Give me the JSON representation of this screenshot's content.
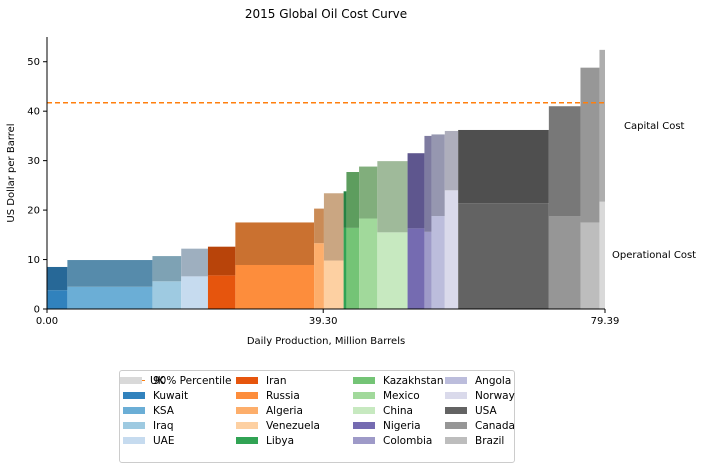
{
  "chart_data": {
    "type": "bar",
    "title": "2015 Global Oil Cost Curve",
    "xlabel": "Daily Production, Million Barrels",
    "ylabel": "US Dollar per Barrel",
    "xlim": [
      0,
      79.39
    ],
    "ylim": [
      0,
      55
    ],
    "xticks": [
      "0.00",
      "39.30",
      "79.39"
    ],
    "yticks": [
      0,
      10,
      20,
      30,
      40,
      50
    ],
    "percentile_label": "90% Percentile",
    "percentile_value": 41.7,
    "percentile_color": "#ff7f0e",
    "annotations": {
      "capital": "Capital Cost",
      "operational": "Operational Cost"
    },
    "series": [
      {
        "name": "Kuwait",
        "x0": 0.0,
        "x1": 2.9,
        "operational": 3.8,
        "capital": 4.7,
        "color": "#3182bd"
      },
      {
        "name": "KSA",
        "x0": 2.9,
        "x1": 15.0,
        "operational": 4.5,
        "capital": 5.4,
        "color": "#6baed6"
      },
      {
        "name": "Iraq",
        "x0": 15.0,
        "x1": 19.1,
        "operational": 5.6,
        "capital": 5.1,
        "color": "#9ecae1"
      },
      {
        "name": "UAE",
        "x0": 19.1,
        "x1": 22.9,
        "operational": 6.6,
        "capital": 5.6,
        "color": "#c6dbef"
      },
      {
        "name": "Iran",
        "x0": 22.9,
        "x1": 26.8,
        "operational": 6.8,
        "capital": 5.8,
        "color": "#e6550d"
      },
      {
        "name": "Russia",
        "x0": 26.8,
        "x1": 38.0,
        "operational": 8.9,
        "capital": 8.6,
        "color": "#fd8d3c"
      },
      {
        "name": "Algeria",
        "x0": 38.0,
        "x1": 39.4,
        "operational": 13.3,
        "capital": 7.0,
        "color": "#fdae6b"
      },
      {
        "name": "Venezuela",
        "x0": 39.4,
        "x1": 42.2,
        "operational": 9.8,
        "capital": 13.6,
        "color": "#fdd0a2"
      },
      {
        "name": "Libya",
        "x0": 42.2,
        "x1": 42.6,
        "operational": 16.4,
        "capital": 7.4,
        "color": "#31a354"
      },
      {
        "name": "Kazakhstan",
        "x0": 42.6,
        "x1": 44.4,
        "operational": 16.4,
        "capital": 11.3,
        "color": "#74c476"
      },
      {
        "name": "Mexico",
        "x0": 44.4,
        "x1": 47.0,
        "operational": 18.3,
        "capital": 10.5,
        "color": "#a1d99b"
      },
      {
        "name": "China",
        "x0": 47.0,
        "x1": 51.3,
        "operational": 15.5,
        "capital": 14.4,
        "color": "#c7e9c0"
      },
      {
        "name": "Nigeria",
        "x0": 51.3,
        "x1": 53.7,
        "operational": 16.3,
        "capital": 15.2,
        "color": "#756bb1"
      },
      {
        "name": "Colombia",
        "x0": 53.7,
        "x1": 54.7,
        "operational": 15.6,
        "capital": 19.4,
        "color": "#9e9ac8"
      },
      {
        "name": "Angola",
        "x0": 54.7,
        "x1": 56.6,
        "operational": 18.8,
        "capital": 16.5,
        "color": "#bcbddc"
      },
      {
        "name": "Norway",
        "x0": 56.6,
        "x1": 58.5,
        "operational": 24.0,
        "capital": 12.0,
        "color": "#dadaeb"
      },
      {
        "name": "USA",
        "x0": 58.5,
        "x1": 71.4,
        "operational": 21.4,
        "capital": 14.8,
        "color": "#636363"
      },
      {
        "name": "Canada",
        "x0": 71.4,
        "x1": 75.9,
        "operational": 18.8,
        "capital": 22.2,
        "color": "#969696"
      },
      {
        "name": "Brazil",
        "x0": 75.9,
        "x1": 78.6,
        "operational": 17.5,
        "capital": 31.3,
        "color": "#bdbdbd"
      },
      {
        "name": "UK",
        "x0": 78.6,
        "x1": 79.39,
        "operational": 21.7,
        "capital": 30.7,
        "color": "#d9d9d9"
      }
    ]
  }
}
